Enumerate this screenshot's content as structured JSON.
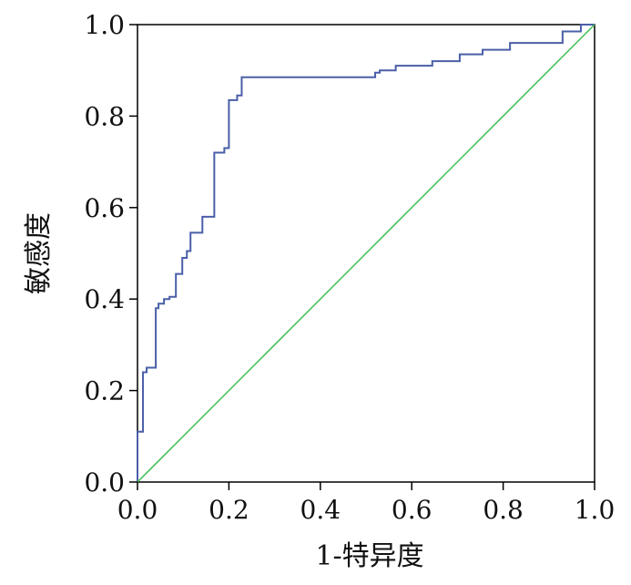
{
  "chart_data": {
    "type": "line",
    "title": "",
    "xlabel": "1-特异度",
    "ylabel": "敏感度",
    "xlim": [
      0.0,
      1.0
    ],
    "ylim": [
      0.0,
      1.0
    ],
    "x_ticks": [
      "0.0",
      "0.2",
      "0.4",
      "0.6",
      "0.8",
      "1.0"
    ],
    "y_ticks": [
      "0.0",
      "0.2",
      "0.4",
      "0.6",
      "0.8",
      "1.0"
    ],
    "grid": false,
    "legend": "none",
    "series": [
      {
        "color": "#4a5fa8",
        "x": [
          0.0,
          0.0,
          0.012,
          0.012,
          0.02,
          0.02,
          0.04,
          0.04,
          0.046,
          0.046,
          0.058,
          0.058,
          0.07,
          0.07,
          0.084,
          0.084,
          0.098,
          0.098,
          0.108,
          0.108,
          0.116,
          0.116,
          0.142,
          0.142,
          0.168,
          0.168,
          0.19,
          0.19,
          0.2,
          0.2,
          0.218,
          0.218,
          0.228,
          0.228,
          0.52,
          0.52,
          0.53,
          0.53,
          0.565,
          0.565,
          0.645,
          0.645,
          0.705,
          0.705,
          0.755,
          0.755,
          0.815,
          0.815,
          0.93,
          0.93,
          0.97,
          0.97,
          1.0
        ],
        "y": [
          0.0,
          0.11,
          0.11,
          0.24,
          0.24,
          0.25,
          0.25,
          0.38,
          0.38,
          0.39,
          0.39,
          0.4,
          0.4,
          0.405,
          0.405,
          0.455,
          0.455,
          0.49,
          0.49,
          0.505,
          0.505,
          0.545,
          0.545,
          0.58,
          0.58,
          0.72,
          0.72,
          0.73,
          0.73,
          0.835,
          0.835,
          0.845,
          0.845,
          0.885,
          0.885,
          0.895,
          0.895,
          0.9,
          0.9,
          0.91,
          0.91,
          0.92,
          0.92,
          0.935,
          0.935,
          0.945,
          0.945,
          0.96,
          0.96,
          0.985,
          0.985,
          1.0,
          1.0
        ]
      },
      {
        "color": "#3fba4f",
        "x": [
          0.0,
          1.0
        ],
        "y": [
          0.0,
          1.0
        ]
      }
    ]
  }
}
